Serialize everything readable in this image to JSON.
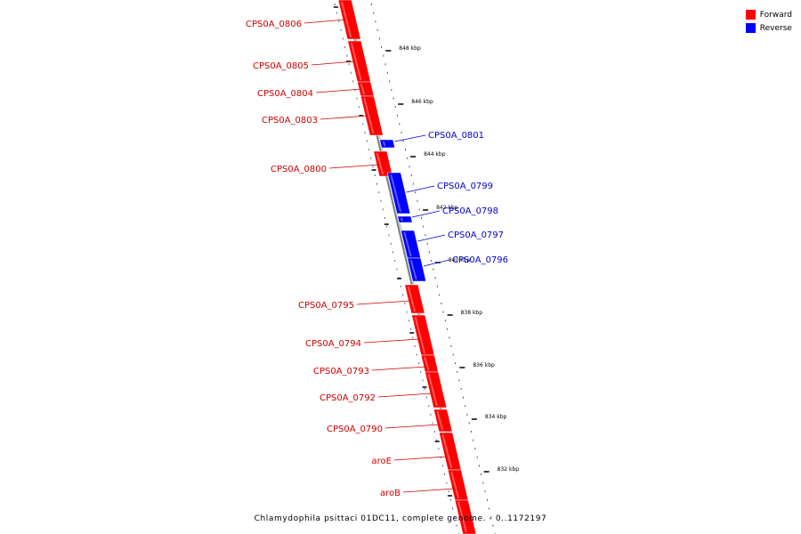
{
  "legend": [
    {
      "label": "Forward",
      "color": "#ff0000"
    },
    {
      "label": "Reverse",
      "color": "#0000ff"
    }
  ],
  "caption": "Chlamydophila psittaci 01DC11, complete genome. - 0..1172197",
  "colors": {
    "forward": "#ff0000",
    "reverse": "#0000ff",
    "backbone": "#808080",
    "label_forward": "#cc0000",
    "label_reverse": "#0000cc"
  },
  "ticks": [
    {
      "label": "848 kbp"
    },
    {
      "label": "846 kbp"
    },
    {
      "label": "844 kbp"
    },
    {
      "label": "842 kbp"
    },
    {
      "label": "840 kbp"
    },
    {
      "label": "838 kbp"
    },
    {
      "label": "836 kbp"
    },
    {
      "label": "834 kbp"
    },
    {
      "label": "832 kbp"
    }
  ],
  "genes": [
    {
      "name": "CPS0A_0806",
      "strand": "forward"
    },
    {
      "name": "CPS0A_0805",
      "strand": "forward"
    },
    {
      "name": "CPS0A_0804",
      "strand": "forward"
    },
    {
      "name": "CPS0A_0803",
      "strand": "forward"
    },
    {
      "name": "CPS0A_0801",
      "strand": "reverse"
    },
    {
      "name": "CPS0A_0800",
      "strand": "forward"
    },
    {
      "name": "CPS0A_0799",
      "strand": "reverse"
    },
    {
      "name": "CPS0A_0798",
      "strand": "reverse"
    },
    {
      "name": "CPS0A_0797",
      "strand": "reverse"
    },
    {
      "name": "CPS0A_0796",
      "strand": "reverse"
    },
    {
      "name": "CPS0A_0795",
      "strand": "forward"
    },
    {
      "name": "CPS0A_0794",
      "strand": "forward"
    },
    {
      "name": "CPS0A_0793",
      "strand": "forward"
    },
    {
      "name": "CPS0A_0792",
      "strand": "forward"
    },
    {
      "name": "CPS0A_0790",
      "strand": "forward"
    },
    {
      "name": "aroE",
      "strand": "forward"
    },
    {
      "name": "aroB",
      "strand": "forward"
    }
  ]
}
